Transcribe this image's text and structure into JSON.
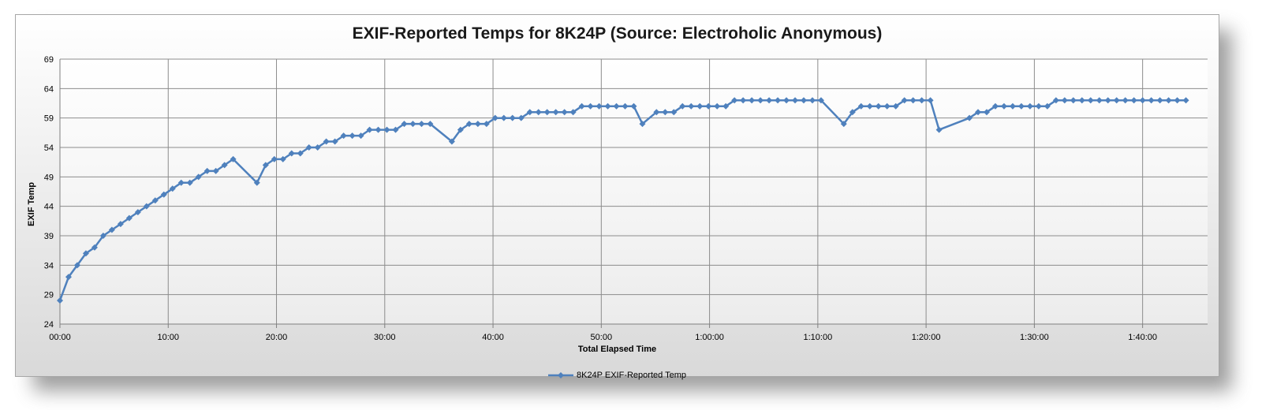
{
  "chart_data": {
    "type": "line",
    "title": "EXIF-Reported Temps for 8K24P (Source: Electroholic Anonymous)",
    "xlabel": "Total Elapsed Time",
    "ylabel": "EXIF Temp",
    "ylim": [
      24,
      69
    ],
    "yticks": [
      "24",
      "29",
      "34",
      "39",
      "44",
      "49",
      "54",
      "59",
      "64",
      "69"
    ],
    "xlim": [
      "00:00",
      "1:46:00"
    ],
    "xticks": [
      "00:00",
      "10:00",
      "20:00",
      "30:00",
      "40:00",
      "50:00",
      "1:00:00",
      "1:10:00",
      "1:20:00",
      "1:30:00",
      "1:40:00"
    ],
    "grid": true,
    "legend_position": "bottom",
    "colors": {
      "series": "#4f81bd"
    },
    "series": [
      {
        "name": "8K24P EXIF-Reported Temp",
        "marker": "diamond",
        "x": [
          "00:00",
          "00:48",
          "01:36",
          "02:24",
          "03:12",
          "04:00",
          "04:48",
          "05:36",
          "06:24",
          "07:12",
          "08:00",
          "08:48",
          "09:36",
          "10:24",
          "11:12",
          "12:00",
          "12:48",
          "13:36",
          "14:24",
          "15:12",
          "16:00",
          "18:12",
          "19:00",
          "19:48",
          "20:36",
          "21:24",
          "22:12",
          "23:00",
          "23:48",
          "24:36",
          "25:24",
          "26:12",
          "27:00",
          "27:48",
          "28:36",
          "29:24",
          "30:12",
          "31:00",
          "31:48",
          "32:36",
          "33:24",
          "34:12",
          "36:12",
          "37:00",
          "37:48",
          "38:36",
          "39:24",
          "40:12",
          "41:00",
          "41:48",
          "42:36",
          "43:24",
          "44:12",
          "45:00",
          "45:48",
          "46:36",
          "47:24",
          "48:12",
          "49:00",
          "49:48",
          "50:36",
          "51:24",
          "52:12",
          "53:00",
          "53:48",
          "55:06",
          "55:54",
          "56:42",
          "57:30",
          "58:18",
          "59:06",
          "59:54",
          "1:00:42",
          "1:01:30",
          "1:02:18",
          "1:03:06",
          "1:03:54",
          "1:04:42",
          "1:05:30",
          "1:06:18",
          "1:07:06",
          "1:07:54",
          "1:08:42",
          "1:09:30",
          "1:10:18",
          "1:12:24",
          "1:13:12",
          "1:14:00",
          "1:14:48",
          "1:15:36",
          "1:16:24",
          "1:17:12",
          "1:18:00",
          "1:18:48",
          "1:19:36",
          "1:20:24",
          "1:21:12",
          "1:24:00",
          "1:24:48",
          "1:25:36",
          "1:26:24",
          "1:27:12",
          "1:28:00",
          "1:28:48",
          "1:29:36",
          "1:30:24",
          "1:31:12",
          "1:32:00",
          "1:32:48",
          "1:33:36",
          "1:34:24",
          "1:35:12",
          "1:36:00",
          "1:36:48",
          "1:37:36",
          "1:38:24",
          "1:39:12",
          "1:40:00",
          "1:40:48",
          "1:41:36",
          "1:42:24",
          "1:43:12",
          "1:44:00"
        ],
        "values": [
          28,
          32,
          34,
          36,
          37,
          39,
          40,
          41,
          42,
          43,
          44,
          45,
          46,
          47,
          48,
          48,
          49,
          50,
          50,
          51,
          52,
          48,
          51,
          52,
          52,
          53,
          53,
          54,
          54,
          55,
          55,
          56,
          56,
          56,
          57,
          57,
          57,
          57,
          58,
          58,
          58,
          58,
          55,
          57,
          58,
          58,
          58,
          59,
          59,
          59,
          59,
          60,
          60,
          60,
          60,
          60,
          60,
          61,
          61,
          61,
          61,
          61,
          61,
          61,
          58,
          60,
          60,
          60,
          61,
          61,
          61,
          61,
          61,
          61,
          62,
          62,
          62,
          62,
          62,
          62,
          62,
          62,
          62,
          62,
          62,
          58,
          60,
          61,
          61,
          61,
          61,
          61,
          62,
          62,
          62,
          62,
          57,
          59,
          60,
          60,
          61,
          61,
          61,
          61,
          61,
          61,
          61,
          62,
          62,
          62,
          62,
          62,
          62,
          62,
          62,
          62,
          62,
          62,
          62,
          62,
          62,
          62,
          62
        ]
      }
    ]
  }
}
